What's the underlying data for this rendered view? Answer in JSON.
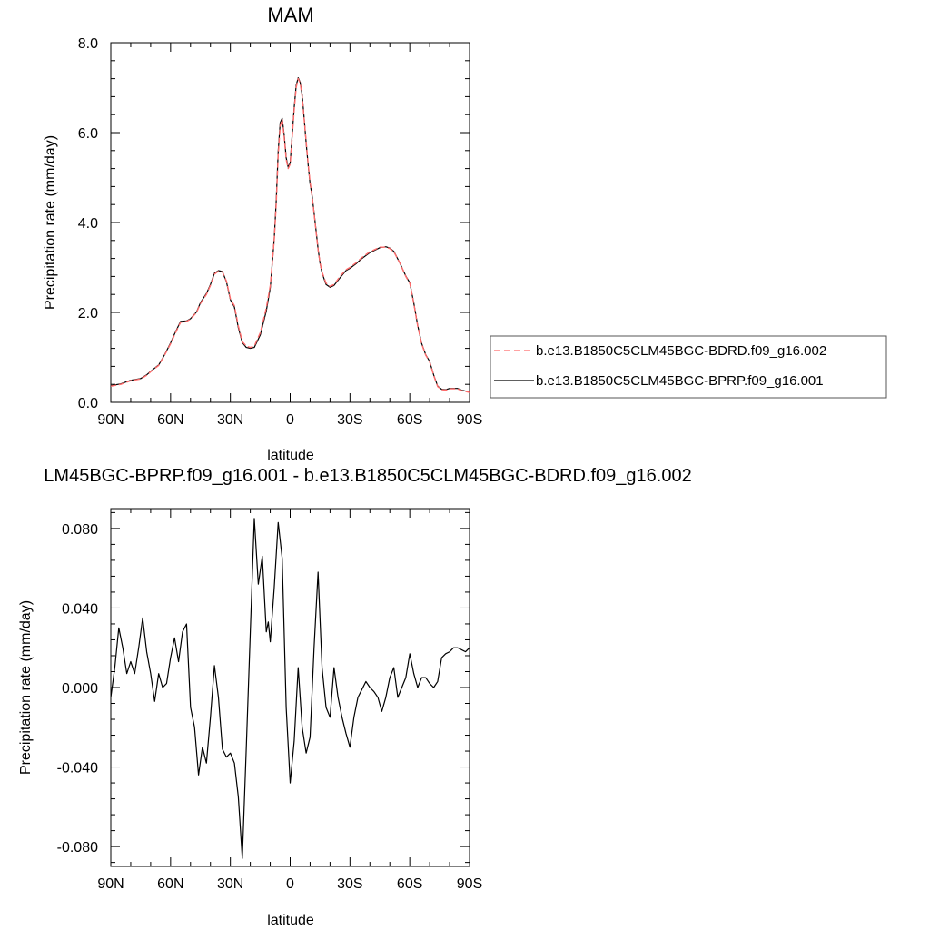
{
  "chart_data": [
    {
      "type": "line",
      "title": "MAM",
      "xlabel": "latitude",
      "ylabel": "Precipitation rate (mm/day)",
      "xlim": [
        90,
        -90
      ],
      "ylim": [
        0.0,
        8.0
      ],
      "xticks": [
        90,
        60,
        30,
        0,
        -30,
        -60,
        -90
      ],
      "xtick_labels": [
        "90N",
        "60N",
        "30N",
        "0",
        "30S",
        "60S",
        "90S"
      ],
      "yticks": [
        0,
        2,
        4,
        6,
        8
      ],
      "ytick_labels": [
        "0.0",
        "2.0",
        "4.0",
        "6.0",
        "8.0"
      ],
      "grid": false,
      "legend_position": "right",
      "series": [
        {
          "name": "b.e13.B1850C5CLM45BGC-BDRD.f09_g16.002",
          "color": "#ff6b6b",
          "dash": "dashed",
          "x": [
            90,
            85,
            80,
            75,
            72,
            70,
            66,
            63,
            60,
            58,
            55,
            52,
            50,
            47,
            45,
            42,
            40,
            38,
            36,
            34,
            32,
            30,
            28,
            26,
            24,
            22,
            20,
            18,
            15,
            12,
            10,
            8,
            7,
            6,
            5,
            4,
            3,
            2,
            1,
            0,
            -1,
            -2,
            -3,
            -4,
            -5,
            -6,
            -7,
            -8,
            -9,
            -10,
            -11,
            -12,
            -13,
            -14,
            -15,
            -16,
            -18,
            -20,
            -22,
            -25,
            -28,
            -30,
            -33,
            -36,
            -40,
            -45,
            -48,
            -50,
            -52,
            -55,
            -58,
            -60,
            -62,
            -64,
            -66,
            -68,
            -70,
            -72,
            -74,
            -76,
            -78,
            -80,
            -82,
            -84,
            -86,
            -88,
            -90
          ],
          "values": [
            0.36,
            0.4,
            0.48,
            0.52,
            0.6,
            0.68,
            0.82,
            1.05,
            1.3,
            1.5,
            1.78,
            1.8,
            1.85,
            2.0,
            2.2,
            2.4,
            2.6,
            2.85,
            2.92,
            2.9,
            2.7,
            2.3,
            2.15,
            1.7,
            1.35,
            1.25,
            1.22,
            1.25,
            1.55,
            2.1,
            2.6,
            3.6,
            4.4,
            5.5,
            6.15,
            6.3,
            5.9,
            5.4,
            5.2,
            5.3,
            5.9,
            6.5,
            7.0,
            7.2,
            7.1,
            6.8,
            6.3,
            5.8,
            5.3,
            4.9,
            4.6,
            4.2,
            3.8,
            3.4,
            3.1,
            2.9,
            2.65,
            2.58,
            2.62,
            2.8,
            2.95,
            3.0,
            3.1,
            3.22,
            3.35,
            3.45,
            3.45,
            3.42,
            3.35,
            3.1,
            2.8,
            2.65,
            2.2,
            1.7,
            1.3,
            1.05,
            0.9,
            0.6,
            0.35,
            0.28,
            0.27,
            0.3,
            0.3,
            0.3,
            0.26,
            0.24,
            0.22
          ]
        },
        {
          "name": "b.e13.B1850C5CLM45BGC-BPRP.f09_g16.001",
          "color": "#000000",
          "dash": "solid",
          "x": [
            90,
            85,
            80,
            75,
            72,
            70,
            66,
            63,
            60,
            58,
            55,
            52,
            50,
            47,
            45,
            42,
            40,
            38,
            36,
            34,
            32,
            30,
            28,
            26,
            24,
            22,
            20,
            18,
            15,
            12,
            10,
            8,
            7,
            6,
            5,
            4,
            3,
            2,
            1,
            0,
            -1,
            -2,
            -3,
            -4,
            -5,
            -6,
            -7,
            -8,
            -9,
            -10,
            -11,
            -12,
            -13,
            -14,
            -15,
            -16,
            -18,
            -20,
            -22,
            -25,
            -28,
            -30,
            -33,
            -36,
            -40,
            -45,
            -48,
            -50,
            -52,
            -55,
            -58,
            -60,
            -62,
            -64,
            -66,
            -68,
            -70,
            -72,
            -74,
            -76,
            -78,
            -80,
            -82,
            -84,
            -86,
            -88,
            -90
          ],
          "values": [
            0.37,
            0.41,
            0.49,
            0.53,
            0.61,
            0.69,
            0.83,
            1.06,
            1.32,
            1.52,
            1.8,
            1.81,
            1.86,
            2.01,
            2.22,
            2.42,
            2.62,
            2.87,
            2.93,
            2.91,
            2.68,
            2.28,
            2.12,
            1.66,
            1.33,
            1.22,
            1.2,
            1.22,
            1.5,
            2.03,
            2.55,
            3.62,
            4.47,
            5.58,
            6.22,
            6.32,
            5.95,
            5.44,
            5.23,
            5.33,
            5.94,
            6.55,
            7.05,
            7.22,
            7.12,
            6.84,
            6.32,
            5.77,
            5.28,
            4.86,
            4.6,
            4.22,
            3.82,
            3.41,
            3.09,
            2.88,
            2.62,
            2.56,
            2.6,
            2.77,
            2.93,
            2.98,
            3.08,
            3.2,
            3.33,
            3.44,
            3.46,
            3.43,
            3.36,
            3.1,
            2.81,
            2.66,
            2.21,
            1.71,
            1.31,
            1.06,
            0.91,
            0.61,
            0.36,
            0.29,
            0.28,
            0.31,
            0.31,
            0.31,
            0.27,
            0.25,
            0.23
          ]
        }
      ]
    },
    {
      "type": "line",
      "title": "LM45BGC-BPRP.f09_g16.001 - b.e13.B1850C5CLM45BGC-BDRD.f09_g16.002",
      "xlabel": "latitude",
      "ylabel": "Precipitation rate (mm/day)",
      "xlim": [
        90,
        -90
      ],
      "ylim": [
        -0.09,
        0.09
      ],
      "xticks": [
        90,
        60,
        30,
        0,
        -30,
        -60,
        -90
      ],
      "xtick_labels": [
        "90N",
        "60N",
        "30N",
        "0",
        "30S",
        "60S",
        "90S"
      ],
      "yticks": [
        -0.08,
        -0.04,
        0.0,
        0.04,
        0.08
      ],
      "ytick_labels": [
        "-0.080",
        "-0.040",
        "0.000",
        "0.040",
        "0.080"
      ],
      "grid": false,
      "series": [
        {
          "color": "#000000",
          "dash": "solid",
          "x": [
            90,
            88,
            86,
            84,
            82,
            80,
            78,
            76,
            74,
            72,
            70,
            68,
            66,
            64,
            62,
            60,
            58,
            56,
            54,
            52,
            50,
            48,
            46,
            44,
            42,
            40,
            38,
            36,
            34,
            32,
            30,
            28,
            26,
            24,
            22,
            20,
            18,
            16,
            14,
            12,
            11,
            10,
            8,
            6,
            4,
            2,
            0,
            -2,
            -4,
            -6,
            -8,
            -10,
            -12,
            -14,
            -16,
            -18,
            -20,
            -22,
            -24,
            -26,
            -28,
            -30,
            -32,
            -34,
            -36,
            -38,
            -40,
            -42,
            -44,
            -46,
            -48,
            -50,
            -52,
            -54,
            -56,
            -58,
            -60,
            -62,
            -64,
            -66,
            -68,
            -70,
            -72,
            -74,
            -76,
            -78,
            -80,
            -82,
            -84,
            -86,
            -88,
            -90
          ],
          "values": [
            -0.005,
            0.01,
            0.03,
            0.02,
            0.007,
            0.013,
            0.007,
            0.02,
            0.035,
            0.018,
            0.007,
            -0.007,
            0.007,
            0.0,
            0.002,
            0.015,
            0.025,
            0.013,
            0.028,
            0.032,
            -0.01,
            -0.02,
            -0.044,
            -0.03,
            -0.038,
            -0.015,
            0.011,
            -0.005,
            -0.031,
            -0.035,
            -0.033,
            -0.038,
            -0.055,
            -0.086,
            -0.03,
            0.028,
            0.085,
            0.052,
            0.066,
            0.028,
            0.033,
            0.023,
            0.05,
            0.083,
            0.065,
            -0.01,
            -0.048,
            -0.027,
            0.01,
            -0.02,
            -0.033,
            -0.025,
            0.02,
            0.058,
            0.01,
            -0.01,
            -0.015,
            0.01,
            -0.005,
            -0.015,
            -0.023,
            -0.03,
            -0.015,
            -0.005,
            -0.001,
            0.003,
            0.0,
            -0.002,
            -0.005,
            -0.012,
            -0.005,
            0.005,
            0.01,
            -0.005,
            0.0,
            0.005,
            0.017,
            0.007,
            0.0,
            0.005,
            0.005,
            0.002,
            0.0,
            0.003,
            0.015,
            0.017,
            0.018,
            0.02,
            0.02,
            0.019,
            0.018,
            0.02
          ]
        }
      ]
    }
  ]
}
